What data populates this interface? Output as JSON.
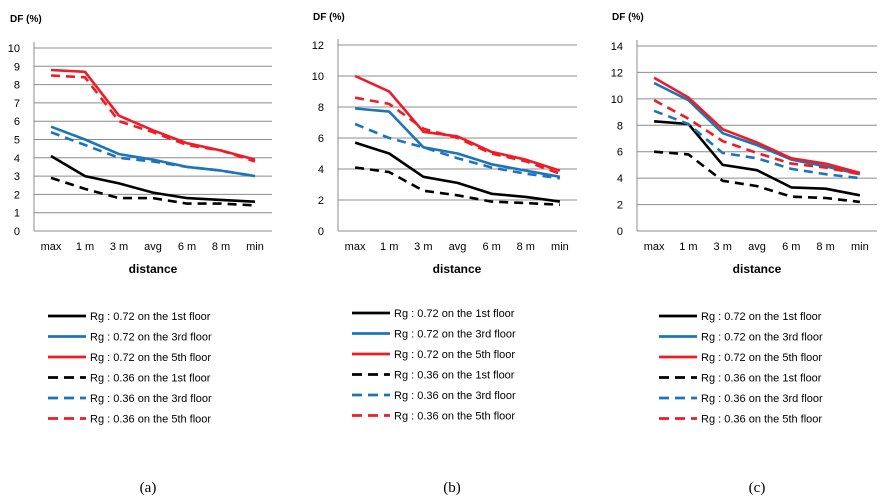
{
  "chart_data": [
    {
      "type": "line",
      "panel_label": "(a)",
      "ylabel": "DF (%)",
      "xlabel": "distance",
      "categories": [
        "max",
        "1 m",
        "3 m",
        "avg",
        "6 m",
        "8 m",
        "min"
      ],
      "yticks": [
        "0",
        "1",
        "2",
        "3",
        "4",
        "5",
        "6",
        "7",
        "8",
        "9",
        "10"
      ],
      "ylim": [
        0,
        10
      ],
      "grid": true,
      "legend_position": "bottom",
      "series": [
        {
          "name": "Rg : 0.72 on the 1st floor",
          "color": "#000000",
          "dash": "solid",
          "values": [
            4.1,
            3.0,
            2.6,
            2.1,
            1.8,
            1.7,
            1.6
          ]
        },
        {
          "name": "Rg : 0.72 on the 3rd floor",
          "color": "#1c75bc",
          "dash": "solid",
          "values": [
            5.7,
            5.0,
            4.2,
            3.9,
            3.5,
            3.3,
            3.0
          ]
        },
        {
          "name": "Rg : 0.72 on the 5th floor",
          "color": "#ee1c25",
          "dash": "solid",
          "values": [
            8.8,
            8.7,
            6.3,
            5.5,
            4.8,
            4.4,
            3.9
          ]
        },
        {
          "name": "Rg : 0.36 on the 1st floor",
          "color": "#000000",
          "dash": "dashed",
          "values": [
            2.9,
            2.3,
            1.8,
            1.8,
            1.5,
            1.5,
            1.4
          ]
        },
        {
          "name": "Rg : 0.36 on the 3rd floor",
          "color": "#1c75bc",
          "dash": "dashed",
          "values": [
            5.4,
            4.7,
            4.0,
            3.8,
            3.5,
            3.3,
            3.0
          ]
        },
        {
          "name": "Rg : 0.36 on the 5th floor",
          "color": "#ee1c25",
          "dash": "dashed",
          "values": [
            8.5,
            8.4,
            6.0,
            5.4,
            4.7,
            4.4,
            3.8
          ]
        }
      ]
    },
    {
      "type": "line",
      "panel_label": "(b)",
      "ylabel": "DF (%)",
      "xlabel": "distance",
      "categories": [
        "max",
        "1 m",
        "3 m",
        "avg",
        "6 m",
        "8 m",
        "min"
      ],
      "yticks": [
        "0",
        "2",
        "4",
        "6",
        "8",
        "10",
        "12"
      ],
      "ylim": [
        0,
        12
      ],
      "grid": true,
      "legend_position": "bottom",
      "series": [
        {
          "name": "Rg : 0.72 on the 1st floor",
          "color": "#000000",
          "dash": "solid",
          "values": [
            5.7,
            5.0,
            3.5,
            3.1,
            2.4,
            2.2,
            1.9
          ]
        },
        {
          "name": "Rg : 0.72 on the 3rd floor",
          "color": "#1c75bc",
          "dash": "solid",
          "values": [
            7.9,
            7.7,
            5.4,
            5.0,
            4.3,
            3.9,
            3.5
          ]
        },
        {
          "name": "Rg : 0.72 on the 5th floor",
          "color": "#ee1c25",
          "dash": "solid",
          "values": [
            10.0,
            9.0,
            6.4,
            6.1,
            5.1,
            4.6,
            3.9
          ]
        },
        {
          "name": "Rg : 0.36 on the 1st floor",
          "color": "#000000",
          "dash": "dashed",
          "values": [
            4.1,
            3.8,
            2.6,
            2.3,
            1.9,
            1.8,
            1.7
          ]
        },
        {
          "name": "Rg : 0.36 on the 3rd floor",
          "color": "#1c75bc",
          "dash": "dashed",
          "values": [
            6.9,
            6.0,
            5.4,
            4.7,
            4.1,
            3.7,
            3.4
          ]
        },
        {
          "name": "Rg : 0.36 on the 5th floor",
          "color": "#ee1c25",
          "dash": "dashed",
          "values": [
            8.6,
            8.2,
            6.6,
            6.0,
            5.0,
            4.5,
            3.7
          ]
        }
      ]
    },
    {
      "type": "line",
      "panel_label": "(c)",
      "ylabel": "DF (%)",
      "xlabel": "distance",
      "categories": [
        "max",
        "1 m",
        "3 m",
        "avg",
        "6 m",
        "8 m",
        "min"
      ],
      "yticks": [
        "0",
        "2",
        "4",
        "6",
        "8",
        "10",
        "12",
        "14"
      ],
      "ylim": [
        0,
        14
      ],
      "grid": true,
      "legend_position": "bottom",
      "series": [
        {
          "name": "Rg : 0.72 on the 1st floor",
          "color": "#000000",
          "dash": "solid",
          "values": [
            8.3,
            8.1,
            5.0,
            4.6,
            3.3,
            3.2,
            2.7
          ]
        },
        {
          "name": "Rg : 0.72 on the 3rd floor",
          "color": "#1c75bc",
          "dash": "solid",
          "values": [
            11.2,
            9.9,
            7.4,
            6.5,
            5.4,
            4.9,
            4.3
          ]
        },
        {
          "name": "Rg : 0.72 on the 5th floor",
          "color": "#ee1c25",
          "dash": "solid",
          "values": [
            11.6,
            10.1,
            7.7,
            6.7,
            5.5,
            5.1,
            4.4
          ]
        },
        {
          "name": "Rg : 0.36 on the 1st floor",
          "color": "#000000",
          "dash": "dashed",
          "values": [
            6.0,
            5.8,
            3.8,
            3.4,
            2.6,
            2.5,
            2.2
          ]
        },
        {
          "name": "Rg : 0.36 on the 3rd floor",
          "color": "#1c75bc",
          "dash": "dashed",
          "values": [
            9.1,
            8.1,
            5.9,
            5.5,
            4.7,
            4.3,
            4.0
          ]
        },
        {
          "name": "Rg : 0.36 on the 5th floor",
          "color": "#ee1c25",
          "dash": "dashed",
          "values": [
            9.9,
            8.5,
            6.8,
            5.9,
            5.1,
            4.8,
            4.3
          ]
        }
      ]
    }
  ]
}
